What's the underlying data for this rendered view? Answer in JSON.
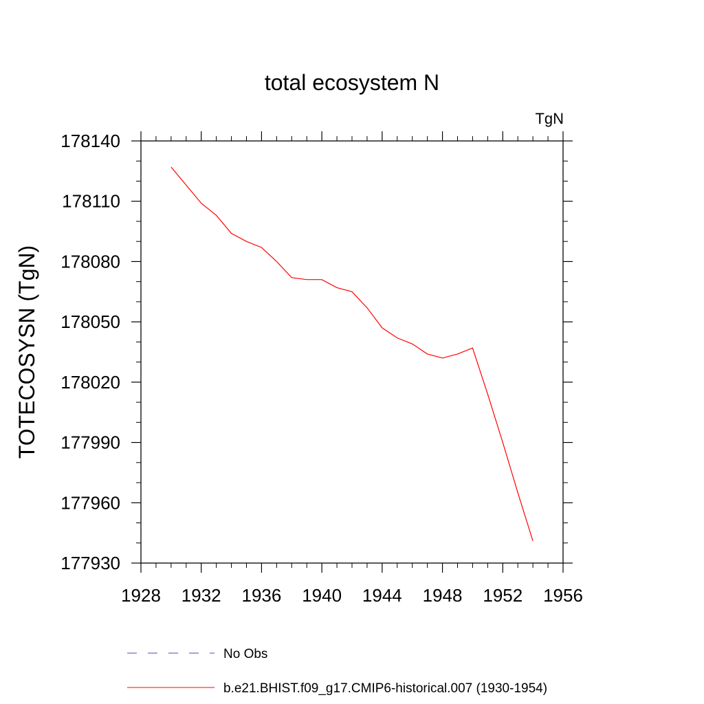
{
  "chart_data": {
    "type": "line",
    "title": "total ecosystem N",
    "units_label": "TgN",
    "xlabel": "",
    "ylabel": "TOTECOSYSN  (TgN)",
    "xlim": [
      1928,
      1956
    ],
    "ylim": [
      177930,
      178140
    ],
    "x_ticks": [
      1928,
      1932,
      1936,
      1940,
      1944,
      1948,
      1952,
      1956
    ],
    "y_ticks": [
      177930,
      177960,
      177990,
      178020,
      178050,
      178080,
      178110,
      178140
    ],
    "grid": false,
    "legend_position": "bottom",
    "series": [
      {
        "name": "b.e21.BHIST.f09_g17.CMIP6-historical.007 (1930-1954)",
        "color": "#ff0000",
        "style": "solid",
        "x": [
          1930,
          1931,
          1932,
          1933,
          1934,
          1935,
          1936,
          1937,
          1938,
          1939,
          1940,
          1941,
          1942,
          1943,
          1944,
          1945,
          1946,
          1947,
          1948,
          1949,
          1950,
          1951,
          1952,
          1953,
          1954
        ],
        "y": [
          178127,
          178118,
          178109,
          178103,
          178094,
          178090,
          178087,
          178080,
          178072,
          178071,
          178071,
          178067,
          178065,
          178057,
          178047,
          178042,
          178039,
          178034,
          178032,
          178034,
          178037,
          178014,
          177990,
          177965,
          177941
        ]
      }
    ],
    "legend": [
      {
        "label": "No Obs",
        "color": "#4a4ab8",
        "style": "dashed"
      },
      {
        "label": "b.e21.BHIST.f09_g17.CMIP6-historical.007 (1930-1954)",
        "color": "#ff0000",
        "style": "solid"
      }
    ]
  }
}
